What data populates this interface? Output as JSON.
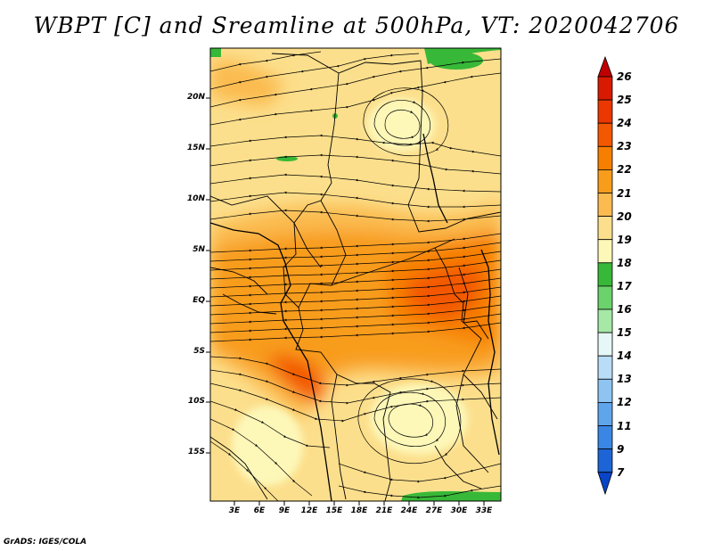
{
  "title": "WBPT [C] and Sreamline at 500hPa, VT: 2020042706",
  "footer": "GrADS: IGES/COLA",
  "map": {
    "lat_labels": [
      "20N",
      "15N",
      "10N",
      "5N",
      "EQ",
      "5S",
      "10S",
      "15S"
    ],
    "lon_labels": [
      "3E",
      "6E",
      "9E",
      "12E",
      "15E",
      "18E",
      "21E",
      "24E",
      "27E",
      "30E",
      "33E"
    ]
  },
  "colorbar": {
    "labels": [
      "26",
      "25",
      "24",
      "23",
      "22",
      "21",
      "20",
      "19",
      "18",
      "17",
      "16",
      "15",
      "14",
      "13",
      "12",
      "11",
      "9",
      "7"
    ],
    "colors": [
      "#c00000",
      "#d71a00",
      "#ea3800",
      "#f35800",
      "#f77f00",
      "#f89c1c",
      "#fbbb50",
      "#fcdf8c",
      "#fdf7b8",
      "#38b838",
      "#6cd26c",
      "#a6e8a6",
      "#e6f7f7",
      "#b9ddf7",
      "#8fc4f2",
      "#5fa5ec",
      "#3a86e4",
      "#1d64d6",
      "#0a45c8"
    ]
  }
}
